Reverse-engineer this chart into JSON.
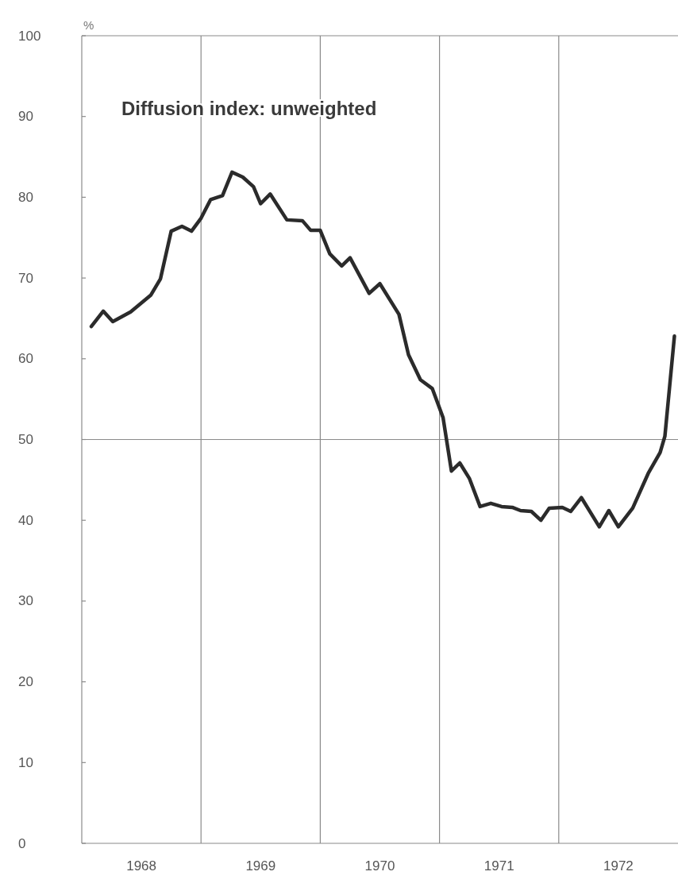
{
  "chart_data": {
    "type": "line",
    "title": "Diffusion index: unweighted",
    "ylabel": "%",
    "x": [
      1968.08,
      1968.18,
      1968.26,
      1968.41,
      1968.58,
      1968.66,
      1968.75,
      1968.84,
      1968.92,
      1969.0,
      1969.08,
      1969.18,
      1969.26,
      1969.35,
      1969.44,
      1969.5,
      1969.58,
      1969.72,
      1969.85,
      1969.92,
      1970.0,
      1970.08,
      1970.18,
      1970.25,
      1970.41,
      1970.5,
      1970.66,
      1970.74,
      1970.84,
      1970.94,
      1971.03,
      1971.1,
      1971.17,
      1971.25,
      1971.34,
      1971.43,
      1971.52,
      1971.61,
      1971.68,
      1971.77,
      1971.85,
      1971.92,
      1972.03,
      1972.1,
      1972.19,
      1972.34,
      1972.42,
      1972.5,
      1972.62,
      1972.75,
      1972.85,
      1972.89,
      1972.97
    ],
    "series": [
      {
        "color": "#2b2b2b",
        "values": [
          64.0,
          65.9,
          64.6,
          65.8,
          67.9,
          69.9,
          75.8,
          76.4,
          75.8,
          77.4,
          79.7,
          80.2,
          83.1,
          82.5,
          81.3,
          79.2,
          80.4,
          77.2,
          77.1,
          75.9,
          75.9,
          73.0,
          71.5,
          72.5,
          68.1,
          69.3,
          65.5,
          60.5,
          57.4,
          56.3,
          52.7,
          46.1,
          47.1,
          45.2,
          41.7,
          42.1,
          41.7,
          41.6,
          41.2,
          41.1,
          40.0,
          41.5,
          41.6,
          41.1,
          42.8,
          39.2,
          41.2,
          39.2,
          41.5,
          45.8,
          48.4,
          50.4,
          62.8
        ]
      }
    ],
    "xlim": [
      1968,
      1973
    ],
    "xticks": [
      {
        "value": 1968.5,
        "label": "1968"
      },
      {
        "value": 1969.5,
        "label": "1969"
      },
      {
        "value": 1970.5,
        "label": "1970"
      },
      {
        "value": 1971.5,
        "label": "1971"
      },
      {
        "value": 1972.5,
        "label": "1972"
      }
    ],
    "ylim": [
      0,
      100
    ],
    "yticks": [
      0,
      10,
      20,
      30,
      40,
      50,
      60,
      70,
      80,
      90,
      100
    ],
    "ref_lines": [
      {
        "axis": "y",
        "value": 50
      },
      {
        "axis": "x",
        "value": 1969
      },
      {
        "axis": "x",
        "value": 1970
      },
      {
        "axis": "x",
        "value": 1971
      },
      {
        "axis": "x",
        "value": 1972
      }
    ],
    "grid": false,
    "line_style": "solid"
  }
}
